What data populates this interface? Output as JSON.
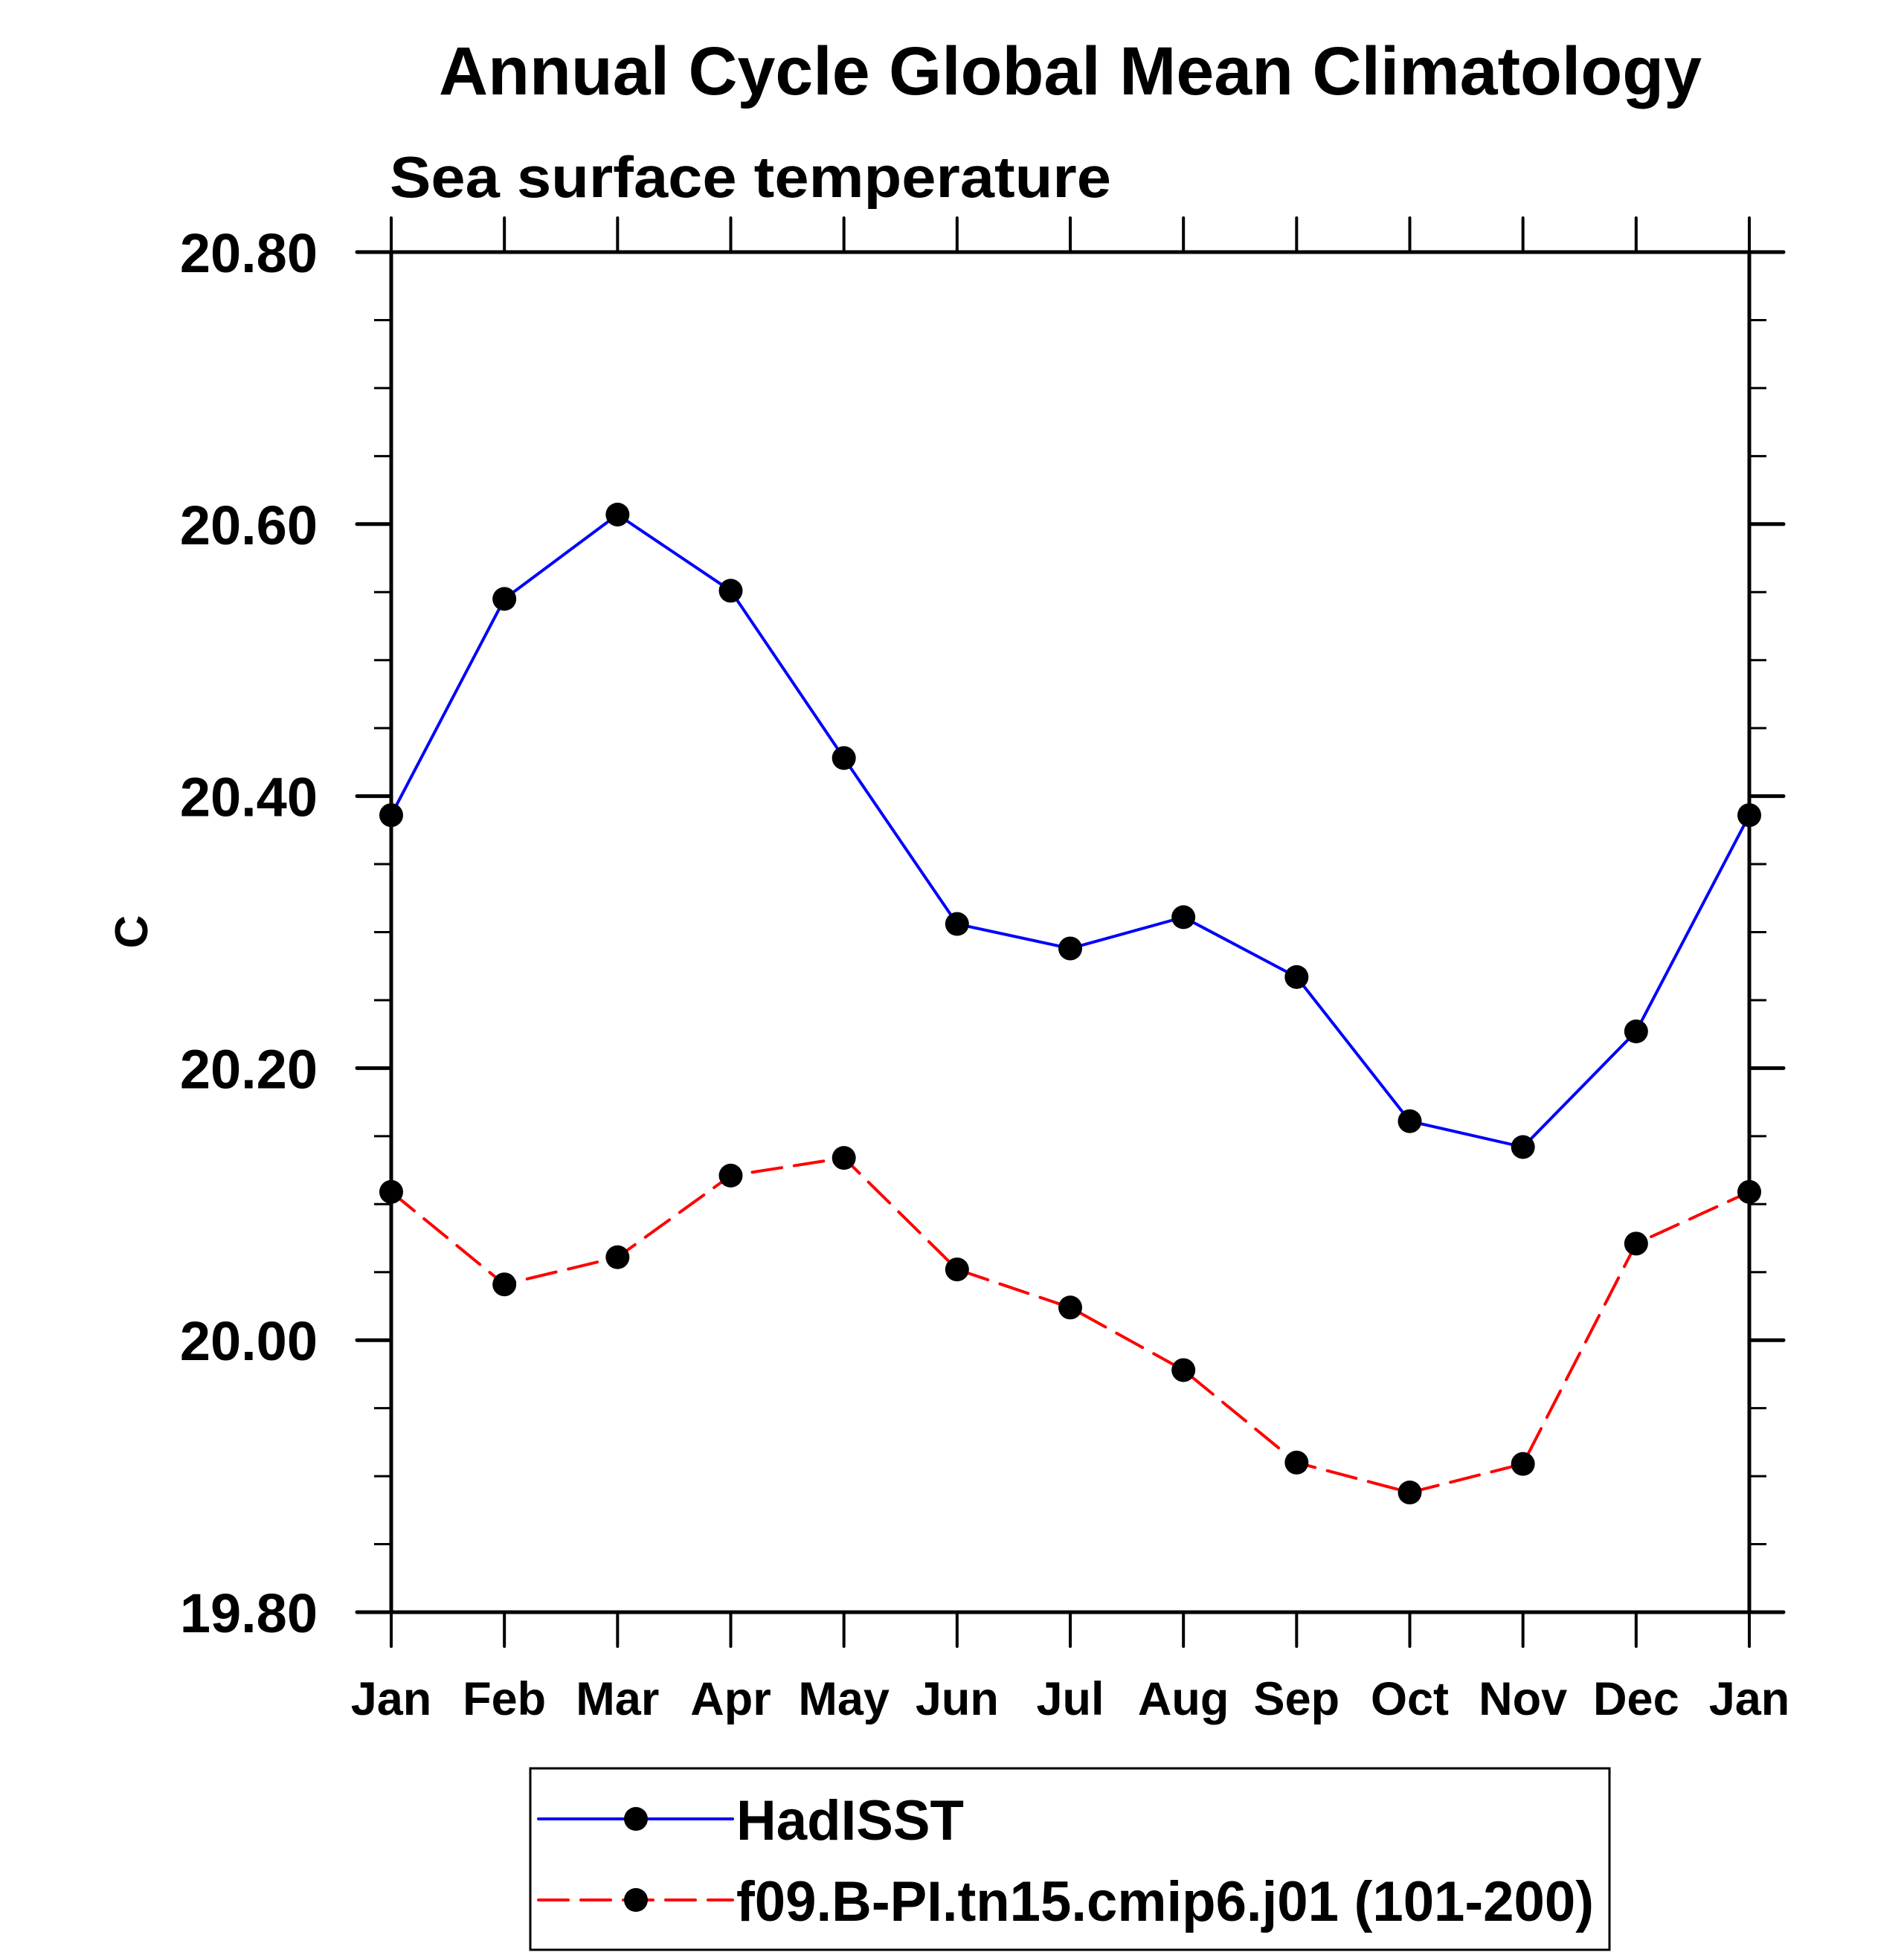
{
  "chart_data": {
    "type": "line",
    "title": "Annual Cycle Global Mean Climatology",
    "subtitle": "Sea surface temperature",
    "xlabel": "",
    "ylabel": "C",
    "ylim": [
      19.8,
      20.8
    ],
    "y_major_ticks": [
      19.8,
      20.0,
      20.2,
      20.4,
      20.6,
      20.8
    ],
    "y_tick_labels": [
      "19.80",
      "20.00",
      "20.20",
      "20.40",
      "20.60",
      "20.80"
    ],
    "y_minor_step": 0.05,
    "grid": false,
    "categories": [
      "Jan",
      "Feb",
      "Mar",
      "Apr",
      "May",
      "Jun",
      "Jul",
      "Aug",
      "Sep",
      "Oct",
      "Nov",
      "Dec",
      "Jan"
    ],
    "legend_position": "bottom-center",
    "series": [
      {
        "name": "HadISST",
        "color": "#0000ff",
        "line_style": "solid",
        "marker": "filled-circle",
        "marker_color": "#000000",
        "values": [
          20.386,
          20.545,
          20.607,
          20.551,
          20.428,
          20.306,
          20.288,
          20.311,
          20.267,
          20.161,
          20.142,
          20.227,
          20.386
        ]
      },
      {
        "name": "f09.B-PI.tn15.cmip6.j01 (101-200)",
        "color": "#ff0000",
        "line_style": "dashed",
        "marker": "filled-circle",
        "marker_color": "#000000",
        "values": [
          20.109,
          20.041,
          20.061,
          20.121,
          20.134,
          20.052,
          20.024,
          19.978,
          19.91,
          19.888,
          19.909,
          20.071,
          20.109
        ]
      }
    ]
  }
}
